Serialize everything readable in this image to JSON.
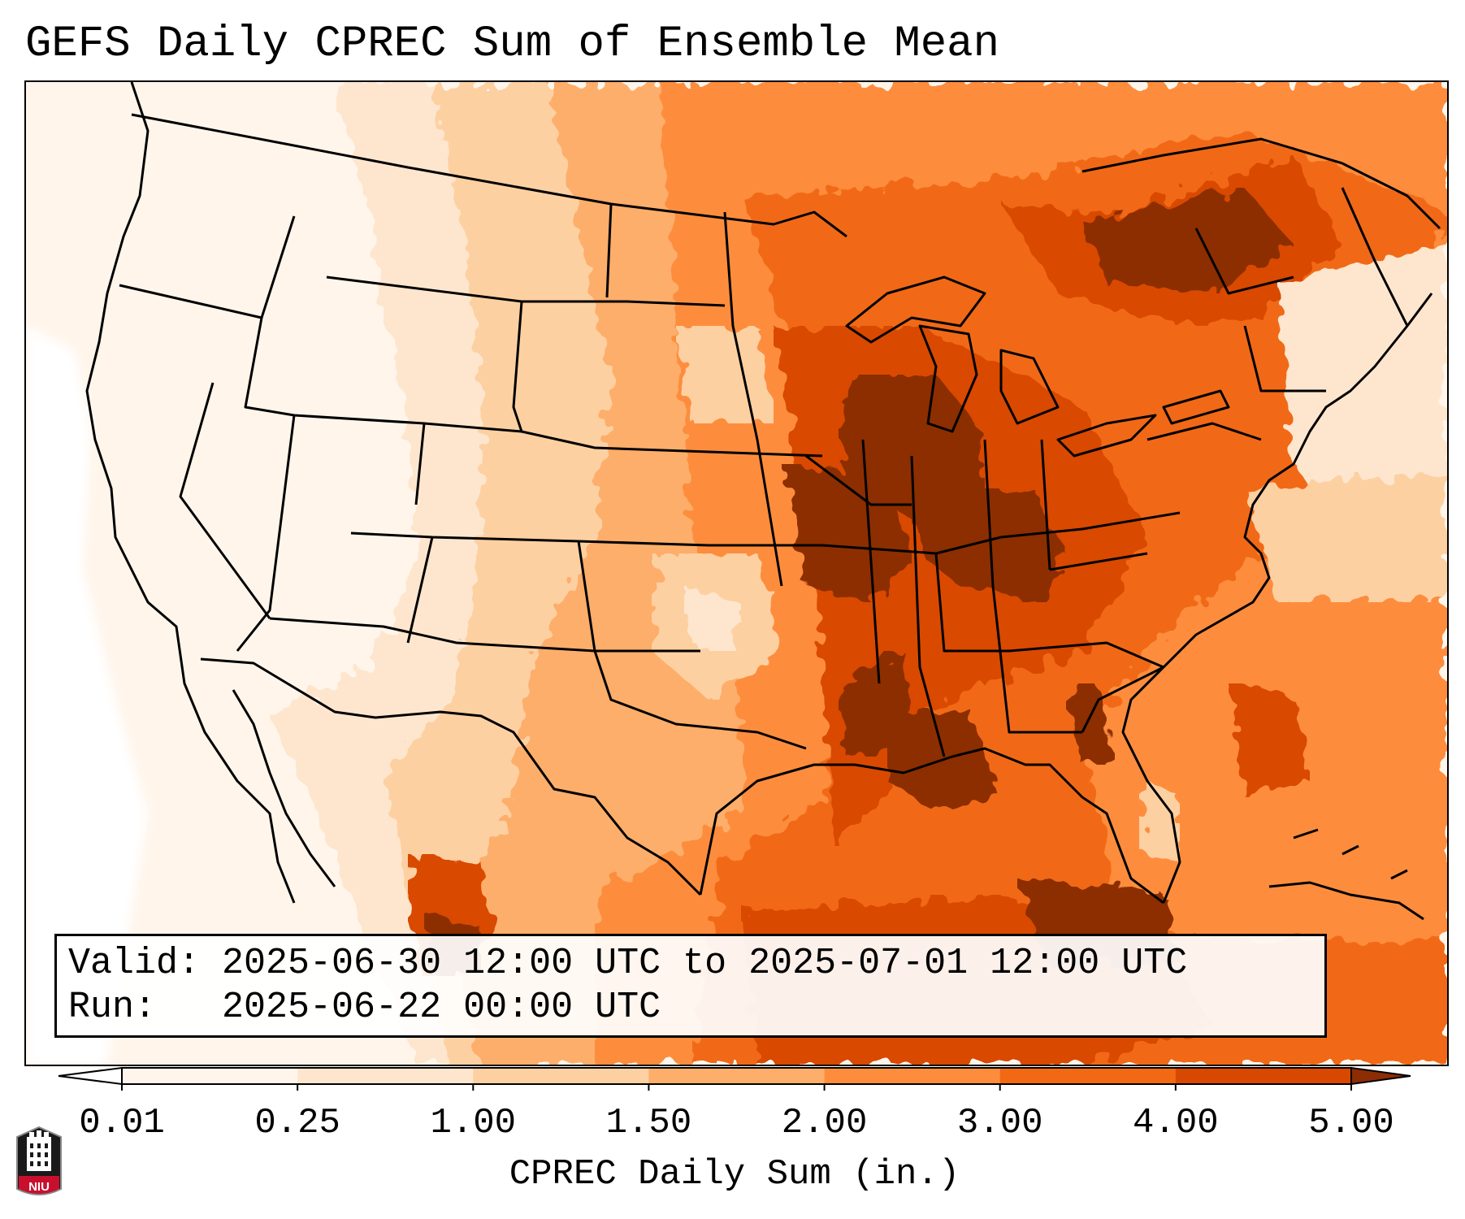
{
  "title": "GEFS Daily CPREC Sum of Ensemble Mean",
  "valid_line": "Valid: 2025-06-30 12:00 UTC to 2025-07-01 12:00 UTC",
  "run_line": "Run:   2025-06-22 00:00 UTC",
  "colorbar": {
    "label": "CPREC Daily Sum (in.)",
    "ticks": [
      "0.01",
      "0.25",
      "1.00",
      "1.50",
      "2.00",
      "3.00",
      "4.00",
      "5.00"
    ],
    "colors": [
      "#fff5eb",
      "#fee6ce",
      "#fdd0a2",
      "#fdae6b",
      "#fd8d3c",
      "#f16913",
      "#d94801",
      "#8c2d04"
    ],
    "under_color": "#ffffff",
    "over_color": "#8c2d04"
  },
  "logo": {
    "text": "NIU",
    "icon": "university-tower-icon",
    "color": "#c8102e"
  }
}
